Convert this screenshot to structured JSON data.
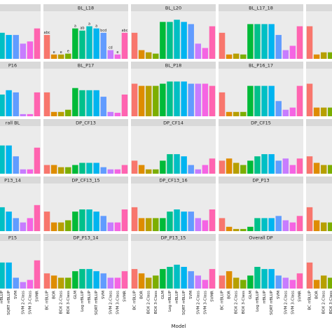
{
  "chart_data": {
    "type": "bar_facets",
    "x_label": "Model",
    "categories": [
      "BC rrBLUP",
      "BOR",
      "BOX 2-Class",
      "BOX 3-Class",
      "GLM",
      "Log rrBLUP",
      "rrBLUP",
      "SQRT rrBLUP",
      "SVM",
      "SVM 2-Class",
      "SVM 3-Class",
      "SVMR"
    ],
    "colors": [
      "#F8766D",
      "#DE8C00",
      "#B79F00",
      "#7CAE00",
      "#00BA38",
      "#00C08B",
      "#00BFC4",
      "#00B4F0",
      "#619CFF",
      "#C77CFF",
      "#F564E3",
      "#FF64B0"
    ],
    "ylim": [
      0,
      1
    ],
    "panels": [
      {
        "values": [
          0.6,
          0.6,
          0.6,
          0.6,
          0.6,
          0.6,
          0.6,
          0.55,
          0.55,
          0.35,
          0.4,
          0.7
        ]
      },
      {
        "title": "BL_L18",
        "values": [
          0.55,
          0.1,
          0.1,
          0.12,
          0.7,
          0.65,
          0.75,
          0.7,
          0.6,
          0.2,
          0.1,
          0.6
        ],
        "letters": [
          "abc",
          "e",
          "e",
          "e",
          "a",
          "ab",
          "a",
          "a",
          "bcd",
          "cd",
          "e",
          "abc"
        ]
      },
      {
        "title": "BL_L20",
        "values": [
          0.6,
          0.2,
          0.15,
          0.12,
          0.85,
          0.85,
          0.9,
          0.85,
          0.8,
          0.35,
          0.25,
          0.75
        ]
      },
      {
        "title": "BL_L17_18",
        "values": [
          0.6,
          0.1,
          0.12,
          0.1,
          0.8,
          0.8,
          0.8,
          0.8,
          0.55,
          0.2,
          0.3,
          0.75
        ]
      },
      {
        "values": [
          0.75,
          0.1,
          0.15,
          0.15,
          0.5,
          0.5,
          0.5,
          0.5,
          0.3,
          0.2,
          0.2,
          0.6
        ]
      },
      {
        "title": "P16",
        "values": [
          0.6,
          0.5,
          0.5,
          0.55,
          0.55,
          0.55,
          0.5,
          0.6,
          0.55,
          0.05,
          0.05,
          0.55
        ]
      },
      {
        "title": "BL_P17",
        "values": [
          0.55,
          0.1,
          0.1,
          0.15,
          0.65,
          0.6,
          0.6,
          0.6,
          0.45,
          0.1,
          0.08,
          0.5
        ]
      },
      {
        "title": "BL_P18",
        "values": [
          0.75,
          0.7,
          0.7,
          0.7,
          0.75,
          0.8,
          0.8,
          0.8,
          0.75,
          0.75,
          0.75,
          0.7
        ]
      },
      {
        "title": "BL_P16_17",
        "values": [
          0.55,
          0.1,
          0.1,
          0.1,
          0.7,
          0.7,
          0.7,
          0.7,
          0.35,
          0.15,
          0.2,
          0.7
        ]
      },
      {
        "values": [
          0.75,
          0.2,
          0.2,
          0.2,
          0.5,
          0.5,
          0.5,
          0.5,
          0.3,
          0.2,
          0.2,
          0.5
        ]
      },
      {
        "title": "rall BL",
        "values": [
          0.6,
          0.6,
          0.6,
          0.6,
          0.6,
          0.6,
          0.65,
          0.65,
          0.4,
          0.1,
          0.1,
          0.6
        ]
      },
      {
        "title": "DP_CF13",
        "values": [
          0.2,
          0.2,
          0.15,
          0.15,
          0.2,
          0.25,
          0.25,
          0.25,
          0.15,
          0.1,
          0.1,
          0.2
        ]
      },
      {
        "title": "DP_CF14",
        "values": [
          0.3,
          0.2,
          0.1,
          0.1,
          0.3,
          0.45,
          0.45,
          0.4,
          0.2,
          0.1,
          0.2,
          0.35
        ]
      },
      {
        "title": "DP_CF15",
        "values": [
          0.3,
          0.35,
          0.25,
          0.2,
          0.3,
          0.4,
          0.45,
          0.45,
          0.3,
          0.35,
          0.2,
          0.35
        ]
      },
      {
        "values": [
          0.4,
          0.25,
          0.2,
          0.2,
          0.3,
          0.3,
          0.3,
          0.3,
          0.2,
          0.2,
          0.2,
          0.3
        ]
      },
      {
        "title": "P13_14",
        "values": [
          0.55,
          0.55,
          0.55,
          0.55,
          0.55,
          0.55,
          0.55,
          0.45,
          0.3,
          0.2,
          0.3,
          0.6
        ]
      },
      {
        "title": "DP_CF13_15",
        "values": [
          0.45,
          0.2,
          0.2,
          0.25,
          0.45,
          0.5,
          0.5,
          0.45,
          0.35,
          0.2,
          0.2,
          0.5
        ]
      },
      {
        "title": "DP_CF13_16",
        "values": [
          0.55,
          0.3,
          0.3,
          0.3,
          0.3,
          0.45,
          0.5,
          0.45,
          0.45,
          0.3,
          0.25,
          0.5
        ]
      },
      {
        "title": "DP_P13",
        "values": [
          0.3,
          0.1,
          0.05,
          0.05,
          0.1,
          0.3,
          0.3,
          0.3,
          0.35,
          0.25,
          0.2,
          0.35
        ]
      },
      {
        "values": [
          0.55,
          0.25,
          0.2,
          0.2,
          0.3,
          0.35,
          0.35,
          0.3,
          0.25,
          0.2,
          0.2,
          0.3
        ]
      },
      {
        "title": "P15",
        "values": [
          0.6,
          0.6,
          0.6,
          0.6,
          0.6,
          0.6,
          0.6,
          0.6,
          0.25,
          0.15,
          0.2,
          0.65
        ]
      },
      {
        "title": "DP_P13_14",
        "values": [
          0.35,
          0.3,
          0.25,
          0.25,
          0.4,
          0.45,
          0.45,
          0.4,
          0.35,
          0.25,
          0.25,
          0.4
        ]
      },
      {
        "title": "DP_P13_15",
        "values": [
          0.45,
          0.35,
          0.25,
          0.3,
          0.45,
          0.5,
          0.55,
          0.5,
          0.4,
          0.3,
          0.2,
          0.45
        ]
      },
      {
        "title": "Overall DP",
        "values": [
          0.3,
          0.4,
          0.25,
          0.2,
          0.3,
          0.5,
          0.45,
          0.45,
          0.3,
          0.25,
          0.2,
          0.35
        ]
      },
      {
        "values": [
          0.6,
          0.2,
          0.3,
          0.25,
          0.3,
          0.3,
          0.3,
          0.3,
          0.25,
          0.2,
          0.2,
          0.3
        ]
      }
    ]
  }
}
